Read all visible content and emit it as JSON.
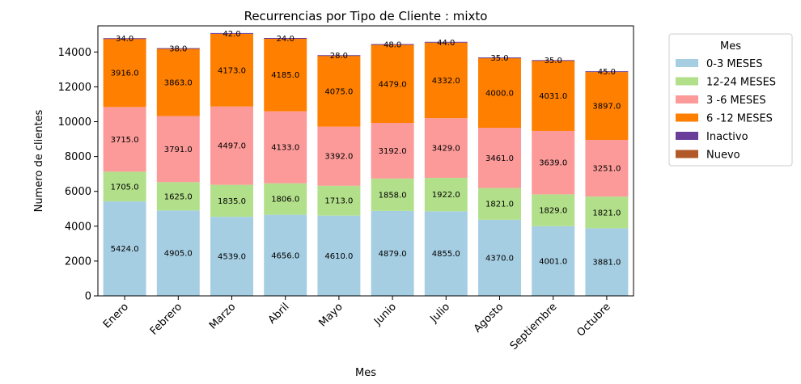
{
  "chart_data": {
    "type": "bar",
    "stacked": true,
    "title": "Recurrencias por Tipo de Cliente : mixto",
    "xlabel": "Mes",
    "ylabel": "Numero de clientes",
    "ylim": [
      0,
      15500
    ],
    "yticks": [
      0,
      2000,
      4000,
      6000,
      8000,
      10000,
      12000,
      14000
    ],
    "ytick_labels": [
      "0",
      "2000",
      "4000",
      "6000",
      "8000",
      "10000",
      "12000",
      "14000"
    ],
    "grid": false,
    "legend_title": "Mes",
    "legend_position": "outside-top-right",
    "categories": [
      "Enero",
      "Febrero",
      "Marzo",
      "Abril",
      "Mayo",
      "Junio",
      "Julio",
      "Agosto",
      "Septiembre",
      "Octubre"
    ],
    "series": [
      {
        "name": "0-3 MESES",
        "color": "#a6cee3",
        "values": [
          5424.0,
          4905.0,
          4539.0,
          4656.0,
          4610.0,
          4879.0,
          4855.0,
          4370.0,
          4001.0,
          3881.0
        ],
        "labels": [
          "5424.0",
          "4905.0",
          "4539.0",
          "4656.0",
          "4610.0",
          "4879.0",
          "4855.0",
          "4370.0",
          "4001.0",
          "3881.0"
        ]
      },
      {
        "name": "12-24 MESES",
        "color": "#b2df8a",
        "values": [
          1705.0,
          1625.0,
          1835.0,
          1806.0,
          1713.0,
          1858.0,
          1922.0,
          1821.0,
          1829.0,
          1821.0
        ],
        "labels": [
          "1705.0",
          "1625.0",
          "1835.0",
          "1806.0",
          "1713.0",
          "1858.0",
          "1922.0",
          "1821.0",
          "1829.0",
          "1821.0"
        ]
      },
      {
        "name": "3 -6 MESES",
        "color": "#fb9a99",
        "values": [
          3715.0,
          3791.0,
          4497.0,
          4133.0,
          3392.0,
          3192.0,
          3429.0,
          3461.0,
          3639.0,
          3251.0
        ],
        "labels": [
          "3715.0",
          "3791.0",
          "4497.0",
          "4133.0",
          "3392.0",
          "3192.0",
          "3429.0",
          "3461.0",
          "3639.0",
          "3251.0"
        ]
      },
      {
        "name": "6 -12 MESES",
        "color": "#ff7f00",
        "values": [
          3916.0,
          3863.0,
          4173.0,
          4185.0,
          4075.0,
          4479.0,
          4332.0,
          4000.0,
          4031.0,
          3897.0
        ],
        "labels": [
          "3916.0",
          "3863.0",
          "4173.0",
          "4185.0",
          "4075.0",
          "4479.0",
          "4332.0",
          "4000.0",
          "4031.0",
          "3897.0"
        ]
      },
      {
        "name": "Inactivo",
        "color": "#6a3d9a",
        "values": [
          34.0,
          38.0,
          42.0,
          24.0,
          28.0,
          48.0,
          44.0,
          35.0,
          35.0,
          45.0
        ],
        "labels": [
          "34.0",
          "38.0",
          "42.0",
          "24.0",
          "28.0",
          "48.0",
          "44.0",
          "35.0",
          "35.0",
          "45.0"
        ]
      },
      {
        "name": "Nuevo",
        "color": "#b15928",
        "values": [
          0,
          0,
          0,
          0,
          0,
          0,
          0,
          0,
          0,
          0
        ],
        "labels": []
      }
    ]
  }
}
